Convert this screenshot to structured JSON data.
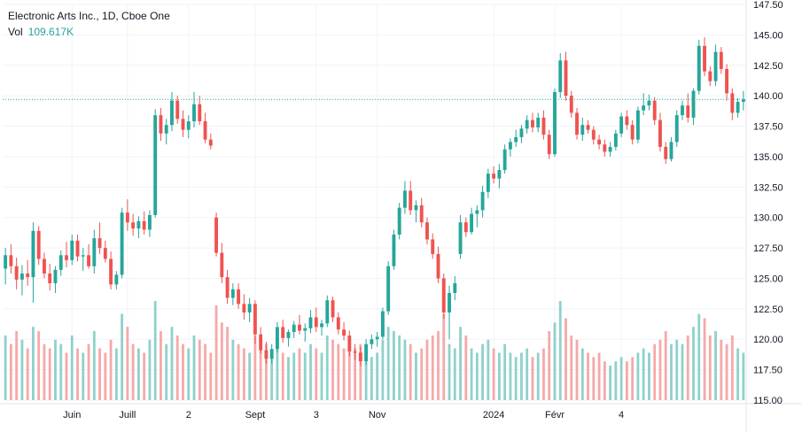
{
  "legend": {
    "symbol_line": "Electronic Arts Inc., 1D, Cboe One",
    "vol_label": "Vol",
    "vol_value": "109.617K"
  },
  "colors": {
    "up": "#26a69a",
    "down": "#ef5350",
    "vol_up": "#8fd1cc",
    "vol_down": "#f5a9a8",
    "grid": "#f0f3fa",
    "last_price_line": "#26a69a"
  },
  "chart_data": {
    "type": "candlestick",
    "title": "Electronic Arts Inc., 1D, Cboe One",
    "price_axis": {
      "min": 115.0,
      "max": 147.5,
      "ticks": [
        "147.50",
        "145.00",
        "142.50",
        "140.00",
        "137.50",
        "135.00",
        "132.50",
        "130.00",
        "127.50",
        "125.00",
        "122.50",
        "120.00",
        "117.50",
        "115.00"
      ]
    },
    "time_axis": {
      "labels": [
        "Juin",
        "Juill",
        "2",
        "Sept",
        "3",
        "Nov",
        "2024",
        "Févr",
        "4"
      ],
      "label_indices": [
        12,
        22,
        33,
        45,
        56,
        67,
        88,
        99,
        111
      ]
    },
    "last_price_line": 139.7,
    "volume_max_k": 230,
    "candles": [
      [
        125.8,
        127.5,
        124.5,
        126.9,
        150
      ],
      [
        126.9,
        127.8,
        125.4,
        126.0,
        130
      ],
      [
        126.0,
        126.7,
        124.1,
        124.9,
        160
      ],
      [
        124.9,
        126.1,
        123.6,
        125.4,
        140
      ],
      [
        125.4,
        126.5,
        124.4,
        125.1,
        120
      ],
      [
        125.1,
        129.6,
        123.0,
        128.9,
        170
      ],
      [
        128.9,
        129.3,
        126.1,
        126.6,
        160
      ],
      [
        126.6,
        127.1,
        125.0,
        125.4,
        130
      ],
      [
        125.4,
        126.2,
        124.0,
        124.6,
        120
      ],
      [
        124.6,
        126.0,
        123.8,
        125.7,
        140
      ],
      [
        125.7,
        127.3,
        125.2,
        126.9,
        130
      ],
      [
        126.9,
        128.0,
        125.9,
        126.5,
        110
      ],
      [
        126.5,
        128.6,
        126.1,
        128.1,
        150
      ],
      [
        128.1,
        128.6,
        126.4,
        126.8,
        120
      ],
      [
        126.8,
        127.5,
        125.6,
        126.9,
        110
      ],
      [
        126.9,
        127.8,
        125.8,
        126.0,
        130
      ],
      [
        126.0,
        129.0,
        125.4,
        128.3,
        160
      ],
      [
        128.3,
        129.6,
        127.0,
        127.5,
        120
      ],
      [
        127.5,
        128.1,
        126.3,
        126.6,
        110
      ],
      [
        126.6,
        127.2,
        124.1,
        124.5,
        140
      ],
      [
        124.5,
        125.6,
        124.1,
        125.3,
        120
      ],
      [
        125.3,
        130.8,
        125.0,
        130.4,
        200
      ],
      [
        130.4,
        131.5,
        128.9,
        129.6,
        170
      ],
      [
        129.6,
        130.3,
        128.5,
        129.1,
        130
      ],
      [
        129.1,
        130.1,
        128.3,
        129.7,
        120
      ],
      [
        129.7,
        130.5,
        128.6,
        129.0,
        110
      ],
      [
        129.0,
        130.6,
        128.4,
        130.2,
        140
      ],
      [
        130.2,
        138.9,
        130.0,
        138.4,
        230
      ],
      [
        138.4,
        139.0,
        136.3,
        136.9,
        160
      ],
      [
        136.9,
        138.1,
        136.0,
        137.6,
        130
      ],
      [
        137.6,
        140.3,
        137.1,
        139.6,
        170
      ],
      [
        139.6,
        140.0,
        137.7,
        138.1,
        150
      ],
      [
        138.1,
        138.8,
        136.6,
        137.2,
        130
      ],
      [
        137.2,
        138.4,
        136.5,
        137.9,
        120
      ],
      [
        137.9,
        140.3,
        137.4,
        139.3,
        150
      ],
      [
        139.3,
        140.0,
        137.6,
        137.9,
        140
      ],
      [
        137.9,
        138.6,
        136.1,
        136.4,
        130
      ],
      [
        136.4,
        136.9,
        135.6,
        135.9,
        110
      ],
      [
        130.0,
        130.4,
        126.8,
        127.1,
        220
      ],
      [
        127.1,
        127.9,
        124.6,
        125.1,
        180
      ],
      [
        125.1,
        125.7,
        122.9,
        123.4,
        170
      ],
      [
        123.4,
        124.6,
        122.8,
        124.1,
        140
      ],
      [
        124.1,
        124.6,
        122.5,
        122.9,
        130
      ],
      [
        122.9,
        123.7,
        121.6,
        122.2,
        120
      ],
      [
        122.2,
        123.4,
        121.4,
        122.9,
        110
      ],
      [
        122.9,
        123.2,
        119.6,
        120.4,
        150
      ],
      [
        120.4,
        121.0,
        118.8,
        119.1,
        140
      ],
      [
        119.1,
        119.8,
        118.0,
        118.4,
        130
      ],
      [
        118.4,
        119.6,
        118.0,
        119.2,
        110
      ],
      [
        119.2,
        121.4,
        118.9,
        121.0,
        120
      ],
      [
        121.0,
        121.6,
        119.7,
        120.1,
        110
      ],
      [
        120.1,
        120.8,
        119.4,
        120.6,
        100
      ],
      [
        120.6,
        121.5,
        120.1,
        121.2,
        110
      ],
      [
        121.2,
        122.0,
        120.4,
        120.7,
        120
      ],
      [
        120.7,
        121.3,
        119.8,
        120.9,
        110
      ],
      [
        120.9,
        122.4,
        120.5,
        121.8,
        130
      ],
      [
        121.8,
        122.6,
        120.6,
        121.0,
        120
      ],
      [
        121.0,
        121.6,
        120.3,
        121.3,
        110
      ],
      [
        121.3,
        123.6,
        121.0,
        123.2,
        150
      ],
      [
        123.2,
        123.5,
        121.4,
        121.8,
        140
      ],
      [
        121.8,
        122.2,
        120.4,
        120.8,
        130
      ],
      [
        120.8,
        121.4,
        119.9,
        120.3,
        120
      ],
      [
        120.3,
        120.7,
        118.6,
        119.0,
        140
      ],
      [
        119.0,
        119.6,
        118.3,
        118.9,
        120
      ],
      [
        118.9,
        119.4,
        117.8,
        118.2,
        130
      ],
      [
        118.2,
        120.0,
        117.9,
        119.6,
        110
      ],
      [
        119.6,
        120.4,
        119.2,
        120.0,
        100
      ],
      [
        120.0,
        120.6,
        119.4,
        120.2,
        110
      ],
      [
        120.2,
        122.6,
        120.0,
        122.3,
        140
      ],
      [
        122.3,
        126.4,
        122.0,
        126.0,
        170
      ],
      [
        126.0,
        129.0,
        125.7,
        128.6,
        160
      ],
      [
        128.6,
        131.2,
        128.2,
        130.8,
        150
      ],
      [
        130.8,
        133.0,
        130.3,
        132.2,
        140
      ],
      [
        132.2,
        133.0,
        130.2,
        130.6,
        130
      ],
      [
        130.6,
        131.4,
        129.6,
        131.0,
        110
      ],
      [
        131.0,
        131.6,
        129.2,
        129.6,
        120
      ],
      [
        129.6,
        130.0,
        127.8,
        128.2,
        140
      ],
      [
        128.2,
        128.7,
        126.6,
        127.0,
        150
      ],
      [
        127.0,
        127.6,
        124.6,
        125.0,
        160
      ],
      [
        125.0,
        125.4,
        121.7,
        122.2,
        200
      ],
      [
        122.2,
        124.4,
        120.0,
        123.8,
        130
      ],
      [
        123.8,
        125.2,
        123.2,
        124.6,
        120
      ],
      [
        127.0,
        130.2,
        126.6,
        129.6,
        170
      ],
      [
        129.6,
        130.0,
        128.4,
        128.8,
        150
      ],
      [
        128.8,
        130.8,
        128.6,
        130.3,
        120
      ],
      [
        130.3,
        131.0,
        129.2,
        130.6,
        110
      ],
      [
        130.6,
        132.6,
        130.0,
        132.1,
        130
      ],
      [
        132.1,
        134.0,
        131.6,
        133.6,
        140
      ],
      [
        133.6,
        134.2,
        132.8,
        133.2,
        120
      ],
      [
        133.2,
        134.4,
        132.4,
        133.9,
        110
      ],
      [
        133.9,
        136.0,
        133.6,
        135.6,
        130
      ],
      [
        135.6,
        136.5,
        135.0,
        136.2,
        110
      ],
      [
        136.2,
        137.2,
        135.8,
        136.6,
        100
      ],
      [
        136.6,
        137.6,
        136.1,
        137.3,
        110
      ],
      [
        137.3,
        138.4,
        136.9,
        138.0,
        120
      ],
      [
        138.0,
        138.6,
        137.0,
        137.4,
        100
      ],
      [
        137.4,
        138.6,
        137.0,
        138.2,
        110
      ],
      [
        138.2,
        138.8,
        136.4,
        136.8,
        120
      ],
      [
        136.8,
        137.2,
        134.8,
        135.2,
        160
      ],
      [
        135.2,
        140.6,
        135.0,
        140.3,
        180
      ],
      [
        140.3,
        143.5,
        139.8,
        142.9,
        230
      ],
      [
        142.9,
        143.6,
        139.6,
        140.0,
        190
      ],
      [
        140.0,
        140.4,
        138.2,
        138.6,
        150
      ],
      [
        138.6,
        139.0,
        136.4,
        136.8,
        140
      ],
      [
        136.8,
        138.2,
        136.3,
        137.6,
        120
      ],
      [
        137.6,
        138.0,
        136.9,
        137.2,
        110
      ],
      [
        137.2,
        137.5,
        136.0,
        136.4,
        100
      ],
      [
        136.4,
        136.8,
        135.6,
        136.0,
        110
      ],
      [
        136.0,
        136.4,
        135.0,
        135.4,
        90
      ],
      [
        135.4,
        136.2,
        135.0,
        135.8,
        80
      ],
      [
        135.8,
        137.2,
        135.5,
        136.9,
        90
      ],
      [
        136.9,
        138.6,
        136.6,
        138.3,
        100
      ],
      [
        138.3,
        138.8,
        137.2,
        137.6,
        90
      ],
      [
        137.6,
        138.0,
        136.0,
        136.4,
        100
      ],
      [
        136.4,
        139.1,
        136.1,
        138.8,
        110
      ],
      [
        138.8,
        140.2,
        138.4,
        139.2,
        120
      ],
      [
        139.2,
        140.1,
        138.8,
        139.6,
        110
      ],
      [
        139.6,
        139.9,
        137.6,
        138.0,
        130
      ],
      [
        138.0,
        138.6,
        135.4,
        135.8,
        140
      ],
      [
        135.8,
        136.2,
        134.4,
        134.8,
        160
      ],
      [
        134.8,
        136.6,
        134.6,
        136.2,
        130
      ],
      [
        136.2,
        138.8,
        135.8,
        138.4,
        140
      ],
      [
        138.4,
        139.6,
        138.0,
        139.2,
        130
      ],
      [
        139.2,
        140.2,
        137.8,
        138.2,
        150
      ],
      [
        138.2,
        140.6,
        137.6,
        140.4,
        170
      ],
      [
        140.4,
        144.6,
        140.1,
        144.1,
        200
      ],
      [
        144.1,
        144.8,
        141.6,
        142.0,
        190
      ],
      [
        142.0,
        142.4,
        140.8,
        141.2,
        150
      ],
      [
        141.2,
        144.2,
        140.8,
        143.6,
        160
      ],
      [
        143.6,
        144.0,
        141.8,
        142.2,
        140
      ],
      [
        142.2,
        142.6,
        139.6,
        140.2,
        130
      ],
      [
        140.2,
        140.6,
        138.0,
        138.6,
        150
      ],
      [
        138.6,
        139.8,
        138.2,
        139.5,
        120
      ],
      [
        139.5,
        140.4,
        138.8,
        139.7,
        110
      ]
    ]
  }
}
